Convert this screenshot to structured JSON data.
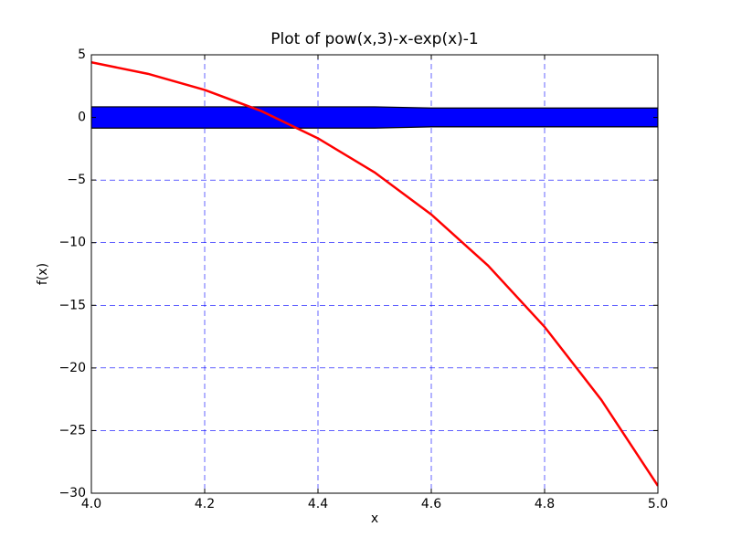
{
  "chart_data": {
    "type": "line",
    "title": "Plot of pow(x,3)-x-exp(x)-1",
    "x_label": "x",
    "y_label": "f(x)",
    "x": [
      4.0,
      4.1,
      4.2,
      4.3,
      4.4,
      4.5,
      4.6,
      4.7,
      4.8,
      4.9,
      5.0
    ],
    "series": [
      {
        "color": "#ff0000",
        "values": [
          4.4,
          3.48,
          2.2,
          0.51,
          -1.67,
          -4.39,
          -7.75,
          -11.82,
          -16.72,
          -22.54,
          -29.41
        ]
      }
    ],
    "band": {
      "color": "#0000ff",
      "x": [
        4.0,
        4.5,
        4.6,
        5.0
      ],
      "upper": [
        0.85,
        0.85,
        0.75,
        0.75
      ],
      "lower": [
        -0.85,
        -0.85,
        -0.75,
        -0.75
      ]
    },
    "xlim": [
      4.0,
      5.0
    ],
    "ylim": [
      -30,
      5
    ],
    "xticks": [
      {
        "value": 4.0,
        "label": "4.0"
      },
      4.2,
      4.4,
      4.6,
      4.8,
      {
        "value": 5.0,
        "label": "5.0"
      }
    ],
    "yticks": [
      {
        "value": -30,
        "label": "−30"
      },
      {
        "value": -25,
        "label": "−25"
      },
      {
        "value": -20,
        "label": "−20"
      },
      {
        "value": -15,
        "label": "−15"
      },
      {
        "value": -10,
        "label": "−10"
      },
      {
        "value": -5,
        "label": "−5"
      },
      0,
      5
    ],
    "grid": true,
    "grid_color": "#0000ff"
  }
}
